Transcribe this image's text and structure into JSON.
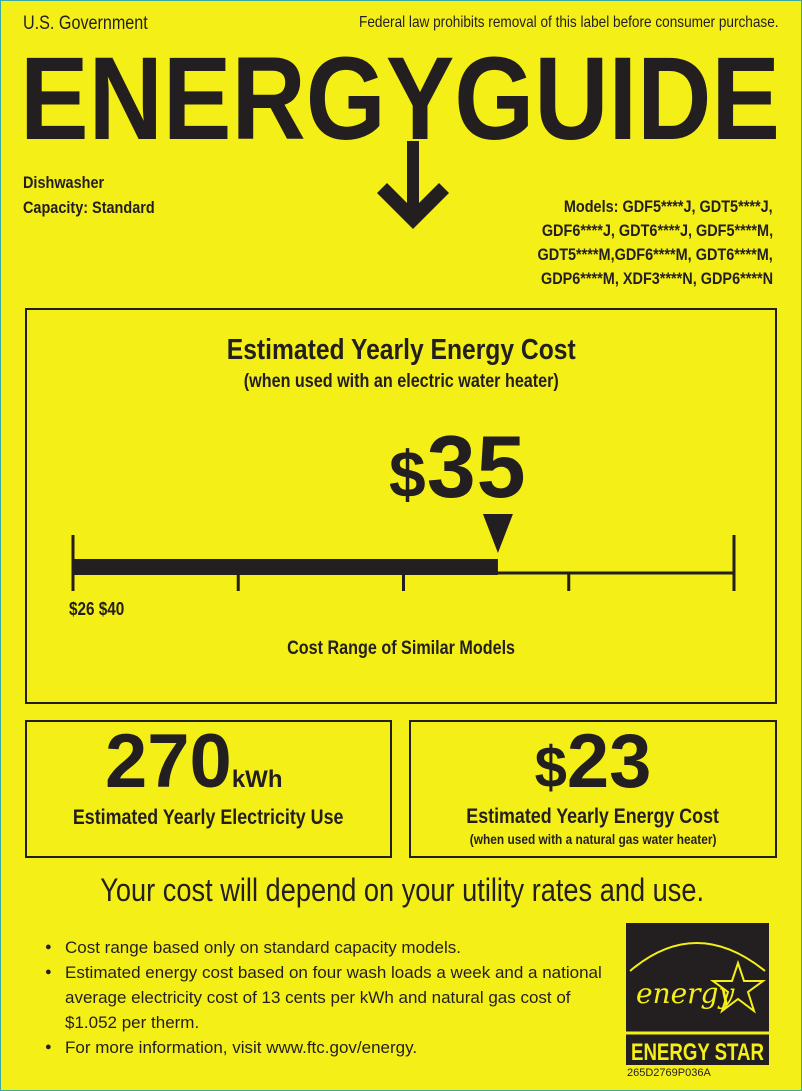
{
  "header": {
    "government": "U.S. Government",
    "notice": "Federal law prohibits removal of this label before consumer purchase.",
    "title": "ENERGYGUIDE"
  },
  "product": {
    "type": "Dishwasher",
    "capacity": "Capacity: Standard",
    "models": [
      "Models: GDF5****J, GDT5****J,",
      "GDF6****J, GDT6****J, GDF5****M,",
      "GDT5****M,GDF6****M, GDT6****M,",
      "GDP6****M, XDF3****N, GDP6****N"
    ]
  },
  "main": {
    "title": "Estimated Yearly Energy Cost",
    "subtitle": "(when used with an electric water heater)",
    "cost_symbol": "$",
    "cost_value": "35",
    "cost_number": 35,
    "range_min": 26,
    "range_max": 40,
    "range_text": "$26 $40",
    "range_label": "Cost Range of Similar Models"
  },
  "electricity": {
    "value": "270",
    "unit": "kWh",
    "label": "Estimated Yearly Electricity Use"
  },
  "gas": {
    "symbol": "$",
    "value": "23",
    "label": "Estimated Yearly Energy Cost",
    "sublabel": "(when used with a natural gas water heater)"
  },
  "footer": {
    "headline": "Your cost will depend on your utility rates and use.",
    "bullets": [
      "Cost range based only on standard capacity models.",
      "Estimated energy cost based on four wash loads a week and a national average electricity cost of 13 cents per kWh and natural gas cost of $1.052 per therm.",
      "For more information, visit www.ftc.gov/energy."
    ],
    "logo_script": "energy",
    "logo_text": "ENERGY STAR",
    "label_code": "265D2769P036A"
  },
  "colors": {
    "background": "#f5ef18",
    "ink": "#231f20"
  }
}
